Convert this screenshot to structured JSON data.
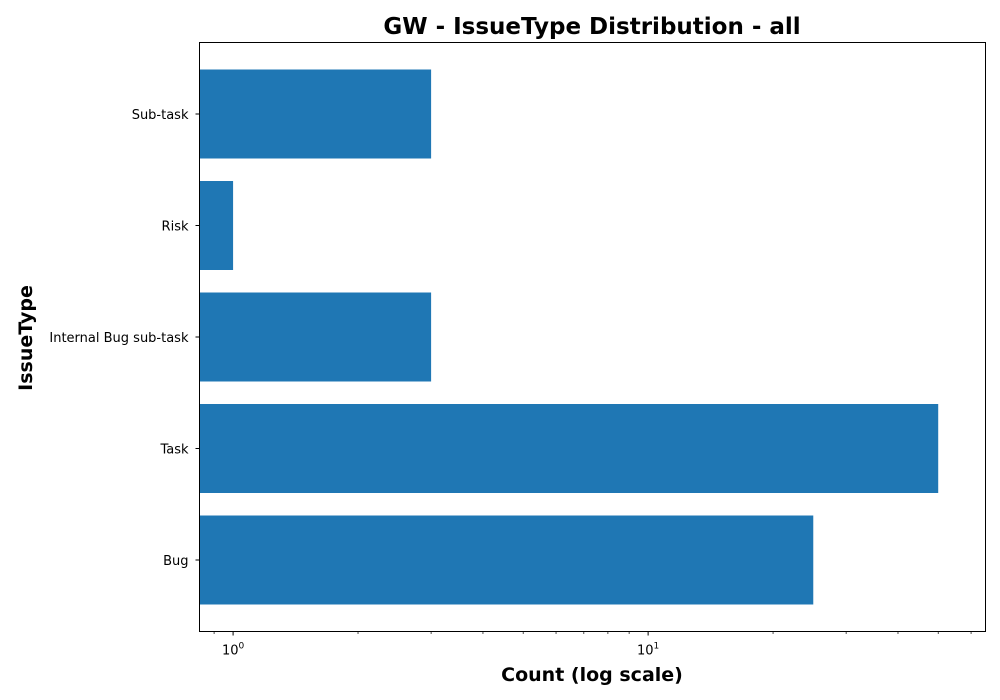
{
  "chart_data": {
    "type": "bar",
    "orientation": "horizontal",
    "title": "GW - IssueType Distribution - all",
    "xlabel": "Count (log scale)",
    "ylabel": "IssueType",
    "xscale": "log",
    "xlim": [
      0.83,
      65
    ],
    "categories": [
      "Bug",
      "Task",
      "Internal Bug sub-task",
      "Risk",
      "Sub-task"
    ],
    "values": [
      25,
      50,
      3,
      1,
      3
    ],
    "x_ticks": [
      {
        "base": "10",
        "exp": "0",
        "value": 1
      },
      {
        "base": "10",
        "exp": "1",
        "value": 10
      }
    ],
    "bar_color": "#1f77b4",
    "grid": false
  }
}
